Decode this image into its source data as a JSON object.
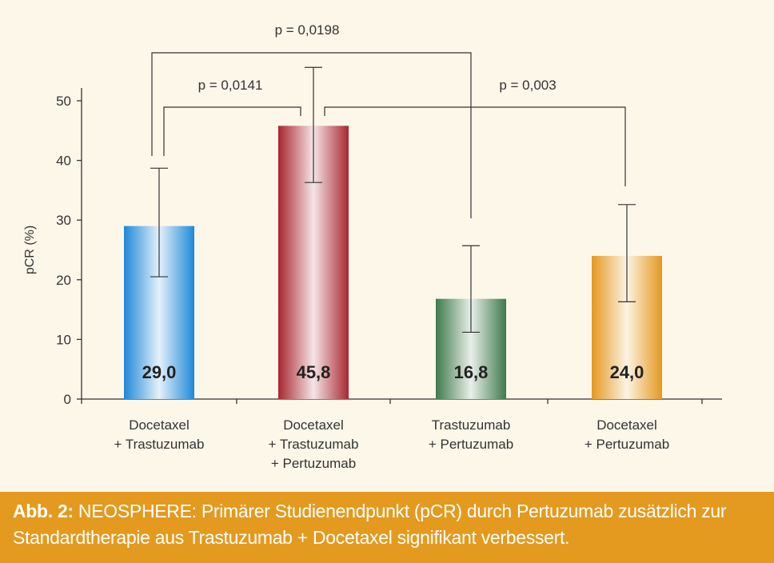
{
  "chart_data": {
    "type": "bar",
    "ylabel": "pCR (%)",
    "ylim": [
      0,
      50
    ],
    "yticks": [
      0,
      10,
      20,
      30,
      40,
      50
    ],
    "categories": [
      [
        "Docetaxel",
        "+ Trastuzumab"
      ],
      [
        "Docetaxel",
        "+ Trastuzumab",
        "+ Pertuzumab"
      ],
      [
        "Trastuzumab",
        "+ Pertuzumab"
      ],
      [
        "Docetaxel",
        "+ Pertuzumab"
      ]
    ],
    "values": [
      29.0,
      45.8,
      16.8,
      24.0
    ],
    "value_labels": [
      "29,0",
      "45,8",
      "16,8",
      "24,0"
    ],
    "error_low": [
      20.5,
      36.3,
      11.2,
      16.3
    ],
    "error_high": [
      38.7,
      55.6,
      25.7,
      32.6
    ],
    "bar_colors": [
      "#1e88d8",
      "#a8262f",
      "#3e7a4a",
      "#e5981f"
    ],
    "comparisons": [
      {
        "from": 0,
        "to": 1,
        "label": "p = 0,0141"
      },
      {
        "from": 0,
        "to": 2,
        "label": "p = 0,0198"
      },
      {
        "from": 1,
        "to": 3,
        "label": "p = 0,003"
      }
    ],
    "grid": false
  },
  "caption": {
    "label": "Abb. 2:",
    "text": " NEOSPHERE: Primärer Studienendpunkt (pCR) durch Pertuzumab zusätzlich zur Standardtherapie aus Trastuzumab + Docetaxel signifikant verbessert."
  }
}
